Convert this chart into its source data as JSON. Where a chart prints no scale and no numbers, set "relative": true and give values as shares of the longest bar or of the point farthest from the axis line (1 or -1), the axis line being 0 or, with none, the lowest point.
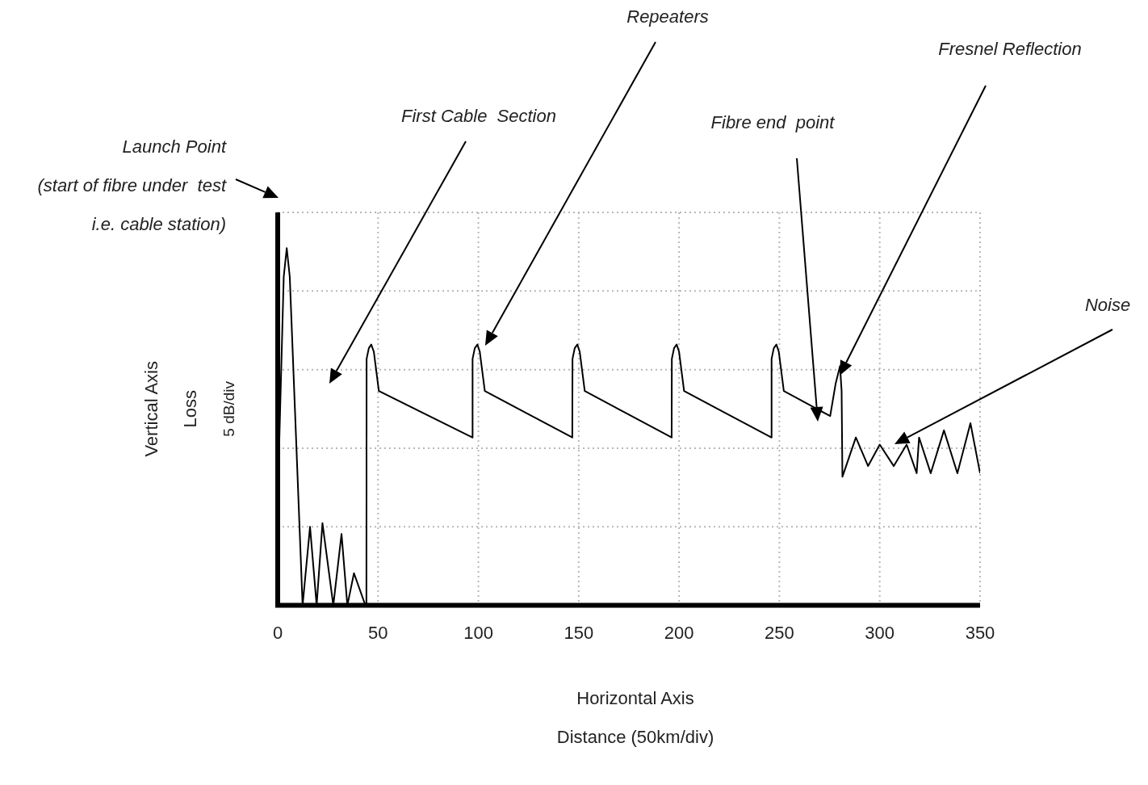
{
  "chart_data": {
    "type": "line",
    "relative": true,
    "xlabel": "Horizontal Axis\nDistance (50km/div)",
    "ylabel": "Vertical Axis\nLoss\n5 dB/div",
    "x": [
      0.5,
      3,
      4.5,
      6,
      12.4,
      16.1,
      19.4,
      22.3,
      27.7,
      31.8,
      34.7,
      38.0,
      43.7,
      44.2,
      44.3,
      45.4,
      46.6,
      47.9,
      50.4,
      97.0,
      97.1,
      98.2,
      99.5,
      100.7,
      103.2,
      146.8,
      146.9,
      148.0,
      149.3,
      150.5,
      153.0,
      196.3,
      196.4,
      197.5,
      198.8,
      200.0,
      202.5,
      246.0,
      246.1,
      247.2,
      248.5,
      249.7,
      252.2,
      275.3,
      278.0,
      280.2,
      281.0,
      281.4,
      288.1,
      294.2,
      300.0,
      307.0,
      313.4,
      318.4,
      319.6,
      325.4,
      332.0,
      338.7,
      345.2,
      350.0
    ],
    "values": [
      0.4,
      0.92,
      1,
      0.92,
      0,
      0.22,
      0,
      0.23,
      0,
      0.2,
      0,
      0.09,
      0,
      0,
      0.69,
      0.72,
      0.73,
      0.71,
      0.6,
      0.47,
      0.69,
      0.72,
      0.73,
      0.71,
      0.6,
      0.47,
      0.69,
      0.72,
      0.73,
      0.71,
      0.6,
      0.47,
      0.69,
      0.72,
      0.73,
      0.71,
      0.6,
      0.47,
      0.69,
      0.72,
      0.73,
      0.71,
      0.6,
      0.53,
      0.62,
      0.67,
      0.6,
      0.36,
      0.47,
      0.39,
      0.45,
      0.39,
      0.45,
      0.37,
      0.47,
      0.37,
      0.49,
      0.37,
      0.51,
      0.37
    ],
    "color": "#000000",
    "marker": "none",
    "xlim": [
      0,
      350
    ],
    "xticks": [
      0,
      50,
      100,
      150,
      200,
      250,
      300,
      350
    ],
    "grid": true,
    "annotations": [
      "Launch Point\n(start of fibre under  test\ni.e. cable station)",
      "First Cable  Section",
      "Repeaters",
      "Fibre end  point",
      "Fresnel Reflection",
      "Noise"
    ]
  }
}
